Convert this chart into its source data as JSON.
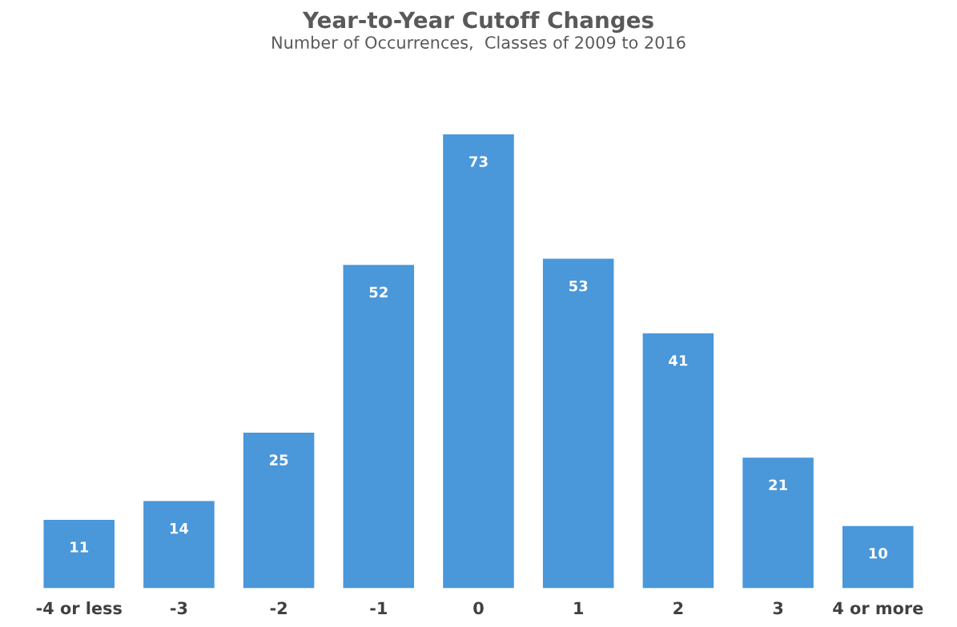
{
  "chart_data": {
    "type": "bar",
    "title": "Year-to-Year Cutoff Changes",
    "subtitle": "Number of Occurrences,  Classes of 2009 to 2016",
    "categories": [
      "-4 or less",
      "-3",
      "-2",
      "-1",
      "0",
      "1",
      "2",
      "3",
      "4 or more"
    ],
    "values": [
      11,
      14,
      25,
      52,
      73,
      53,
      41,
      21,
      10
    ],
    "color": "#4a97da",
    "data_labels": true,
    "tick_labels": "x"
  }
}
